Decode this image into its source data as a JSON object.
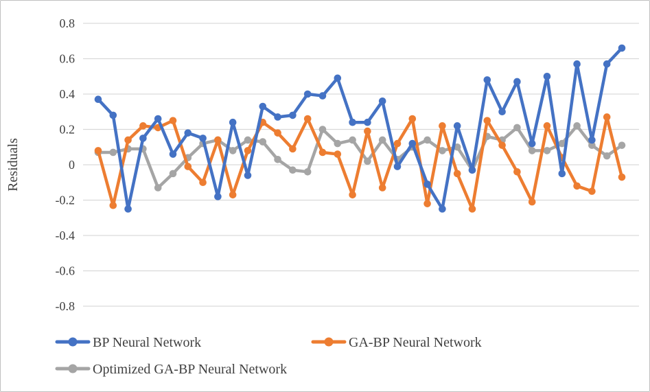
{
  "chart_data": {
    "type": "line",
    "title": "",
    "xlabel": "",
    "ylabel": "Residuals",
    "ylim": [
      -0.8,
      0.8
    ],
    "ytick_step": 0.2,
    "yticks": [
      "0.8",
      "0.6",
      "0.4",
      "0.2",
      "0",
      "-0.2",
      "-0.4",
      "-0.6",
      "-0.8"
    ],
    "grid": "horizontal",
    "legend_position": "bottom-left",
    "marker": "circle",
    "n_points": 36,
    "series": [
      {
        "name": "BP Neural Network",
        "color": "#4472C4",
        "values": [
          0.37,
          0.28,
          -0.25,
          0.15,
          0.26,
          0.06,
          0.18,
          0.15,
          -0.18,
          0.24,
          -0.06,
          0.33,
          0.27,
          0.28,
          0.4,
          0.39,
          0.49,
          0.24,
          0.24,
          0.36,
          -0.01,
          0.12,
          -0.11,
          -0.25,
          0.22,
          -0.03,
          0.48,
          0.3,
          0.47,
          0.12,
          0.5,
          -0.05,
          0.57,
          0.14,
          0.57,
          0.66
        ]
      },
      {
        "name": "GA-BP Neural Network",
        "color": "#ED7D31",
        "values": [
          0.08,
          -0.23,
          0.14,
          0.22,
          0.21,
          0.25,
          -0.01,
          -0.1,
          0.14,
          -0.17,
          0.08,
          0.24,
          0.18,
          0.09,
          0.26,
          0.07,
          0.06,
          -0.17,
          0.19,
          -0.13,
          0.12,
          0.26,
          -0.22,
          0.22,
          -0.05,
          -0.25,
          0.25,
          0.11,
          -0.04,
          -0.21,
          0.22,
          0.04,
          -0.12,
          -0.15,
          0.27,
          -0.07
        ]
      },
      {
        "name": "Optimized GA-BP Neural Network",
        "color": "#A5A5A5",
        "values": [
          0.07,
          0.07,
          0.09,
          0.09,
          -0.13,
          -0.05,
          0.04,
          0.12,
          0.14,
          0.08,
          0.14,
          0.13,
          0.03,
          -0.03,
          -0.04,
          0.2,
          0.12,
          0.14,
          0.02,
          0.14,
          0.03,
          0.1,
          0.14,
          0.08,
          0.1,
          -0.03,
          0.16,
          0.14,
          0.21,
          0.08,
          0.08,
          0.12,
          0.22,
          0.11,
          0.05,
          0.11
        ]
      }
    ]
  },
  "colors": {
    "background": "#FFFFFF",
    "frame_border": "#BFBFBF",
    "gridline": "#D9D9D9",
    "axis_text": "#404040"
  }
}
